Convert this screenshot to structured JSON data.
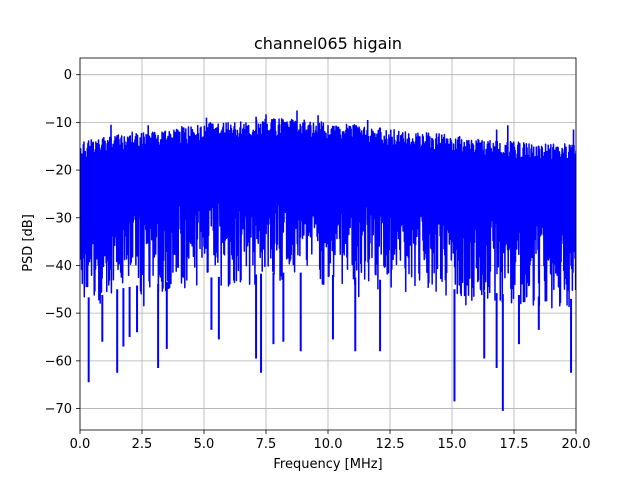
{
  "chart_data": {
    "type": "line",
    "title": "channel065 higain",
    "xlabel": "Frequency [MHz]",
    "ylabel": "PSD [dB]",
    "xlim": [
      0,
      20
    ],
    "ylim": [
      -74.5,
      3.5
    ],
    "xticks": [
      0,
      2.5,
      5,
      7.5,
      10,
      12.5,
      15,
      17.5,
      20
    ],
    "xtick_labels": [
      "0.0",
      "2.5",
      "5.0",
      "7.5",
      "10.0",
      "12.5",
      "15.0",
      "17.5",
      "20.0"
    ],
    "yticks": [
      0,
      -10,
      -20,
      -30,
      -40,
      -50,
      -60,
      -70
    ],
    "ytick_labels": [
      "0",
      "−10",
      "−20",
      "−30",
      "−40",
      "−50",
      "−60",
      "−70"
    ],
    "grid": true,
    "series": [
      {
        "color": "#0000ff",
        "upper_envelope": {
          "x": [
            0,
            0.5,
            1,
            1.5,
            2,
            2.5,
            3,
            3.5,
            4,
            4.5,
            5,
            5.5,
            6,
            6.5,
            7,
            7.5,
            8,
            8.5,
            9,
            9.5,
            10,
            10.5,
            11,
            11.5,
            12,
            12.5,
            13,
            13.5,
            14,
            14.5,
            15,
            15.5,
            16,
            16.5,
            17,
            17.5,
            18,
            18.5,
            19,
            19.5,
            20
          ],
          "y": [
            -14,
            -13.5,
            -13,
            -12.5,
            -12,
            -11.8,
            -11.5,
            -11.2,
            -11,
            -10.5,
            -10,
            -10,
            -9.8,
            -9.6,
            -9.5,
            -9.3,
            -9.2,
            -9.4,
            -9.5,
            -9.8,
            -10,
            -10.3,
            -10.5,
            -10.7,
            -11,
            -11.3,
            -11.5,
            -11.8,
            -12,
            -12.3,
            -12.5,
            -13,
            -13.5,
            -13.8,
            -14,
            -14,
            -14.2,
            -14.3,
            -14.5,
            -14.5,
            -14.5
          ]
        },
        "lower_envelope": {
          "x": [
            0,
            0.5,
            1,
            1.5,
            2,
            2.5,
            3,
            3.5,
            4,
            4.5,
            5,
            5.5,
            6,
            6.5,
            7,
            7.5,
            8,
            8.5,
            9,
            9.5,
            10,
            10.5,
            11,
            11.5,
            12,
            12.5,
            13,
            13.5,
            14,
            14.5,
            15,
            15.5,
            16,
            16.5,
            17,
            17.5,
            18,
            18.5,
            19,
            19.5,
            20
          ],
          "y": [
            -48,
            -49,
            -48,
            -47,
            -46.5,
            -46,
            -46,
            -45.5,
            -45,
            -45,
            -44.5,
            -44.5,
            -44,
            -44,
            -44,
            -43.5,
            -43.5,
            -43.5,
            -43.5,
            -44,
            -44,
            -44,
            -44.5,
            -44.5,
            -45,
            -45,
            -45.5,
            -46,
            -46,
            -46.5,
            -47,
            -47,
            -47.5,
            -47.5,
            -48,
            -48,
            -48.5,
            -48.5,
            -49,
            -49,
            -49
          ]
        },
        "max_peaks": [
          {
            "x": 1.25,
            "y": -10.5
          },
          {
            "x": 2.75,
            "y": -10.6
          },
          {
            "x": 5.1,
            "y": -9.0
          },
          {
            "x": 7.1,
            "y": -8.8
          },
          {
            "x": 7.5,
            "y": -8.3
          },
          {
            "x": 8.75,
            "y": -7.5
          },
          {
            "x": 9.6,
            "y": -8.5
          },
          {
            "x": 11.6,
            "y": -9.5
          },
          {
            "x": 16.8,
            "y": -11.5
          },
          {
            "x": 17.25,
            "y": -10.6
          },
          {
            "x": 19.9,
            "y": -11.5
          }
        ],
        "min_dips": [
          {
            "x": 0.35,
            "y": -64.5
          },
          {
            "x": 0.9,
            "y": -56.0
          },
          {
            "x": 1.5,
            "y": -62.5
          },
          {
            "x": 1.75,
            "y": -57.0
          },
          {
            "x": 2.0,
            "y": -55.0
          },
          {
            "x": 2.3,
            "y": -54.0
          },
          {
            "x": 3.15,
            "y": -61.5
          },
          {
            "x": 3.5,
            "y": -57.5
          },
          {
            "x": 5.3,
            "y": -53.5
          },
          {
            "x": 5.6,
            "y": -55.5
          },
          {
            "x": 7.1,
            "y": -59.5
          },
          {
            "x": 7.3,
            "y": -62.5
          },
          {
            "x": 7.8,
            "y": -56.5
          },
          {
            "x": 8.2,
            "y": -56.0
          },
          {
            "x": 8.9,
            "y": -58.0
          },
          {
            "x": 10.2,
            "y": -55.5
          },
          {
            "x": 11.1,
            "y": -58.0
          },
          {
            "x": 12.1,
            "y": -58.0
          },
          {
            "x": 15.1,
            "y": -68.5
          },
          {
            "x": 16.3,
            "y": -59.5
          },
          {
            "x": 16.8,
            "y": -61.5
          },
          {
            "x": 17.05,
            "y": -70.5
          },
          {
            "x": 17.7,
            "y": -56.5
          },
          {
            "x": 18.5,
            "y": -53.5
          },
          {
            "x": 19.8,
            "y": -62.5
          }
        ]
      }
    ]
  }
}
